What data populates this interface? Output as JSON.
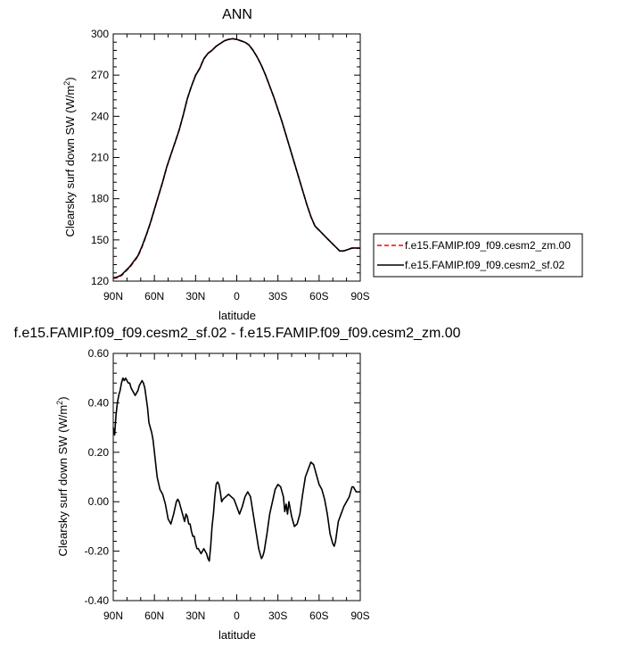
{
  "chart_data": [
    {
      "type": "line",
      "title": "ANN",
      "xlabel": "latitude",
      "ylabel": "Clearsky surf down SW (W/m",
      "ylabel_sup": "2",
      "ylabel_close": ")",
      "xlim": [
        90,
        -90
      ],
      "ylim": [
        120,
        300
      ],
      "x_ticks": [
        90,
        60,
        30,
        0,
        -30,
        -60,
        -90
      ],
      "x_tick_labels": [
        "90N",
        "60N",
        "30N",
        "0",
        "30S",
        "60S",
        "90S"
      ],
      "y_ticks": [
        120,
        150,
        180,
        210,
        240,
        270,
        300
      ],
      "y_tick_labels": [
        "120",
        "150",
        "180",
        "210",
        "240",
        "270",
        "300"
      ],
      "legend_position": "right",
      "series": [
        {
          "name": "f.e15.FAMIP.f09_f09.cesm2_zm.00",
          "color": "#ff0000",
          "dash": "dashed",
          "x": [
            90,
            87,
            84,
            81,
            78,
            75,
            72,
            69,
            66,
            63,
            60,
            57,
            54,
            51,
            48,
            45,
            42,
            39,
            36,
            33,
            30,
            27,
            24,
            21,
            18,
            15,
            12,
            9,
            6,
            3,
            0,
            -3,
            -6,
            -9,
            -12,
            -15,
            -18,
            -21,
            -24,
            -27,
            -30,
            -33,
            -36,
            -39,
            -42,
            -45,
            -48,
            -51,
            -54,
            -57,
            -60,
            -63,
            -66,
            -69,
            -72,
            -75,
            -78,
            -81,
            -84,
            -87,
            -90
          ],
          "y": [
            122,
            122.5,
            124,
            127,
            130,
            134,
            138,
            145,
            153,
            162,
            172,
            182,
            192,
            203,
            212,
            221,
            230,
            241,
            253,
            262,
            270,
            275,
            282,
            286,
            288,
            291,
            293,
            295,
            296,
            296.5,
            296,
            295,
            294,
            292,
            288,
            283,
            277,
            270,
            262,
            254,
            245,
            236,
            226,
            216,
            206,
            196,
            186,
            176,
            167,
            160,
            157,
            154,
            151,
            148,
            145,
            142,
            142,
            143,
            144,
            144,
            144
          ]
        },
        {
          "name": "f.e15.FAMIP.f09_f09.cesm2_sf.02",
          "color": "#000000",
          "dash": "solid",
          "x": [
            90,
            87,
            84,
            81,
            78,
            75,
            72,
            69,
            66,
            63,
            60,
            57,
            54,
            51,
            48,
            45,
            42,
            39,
            36,
            33,
            30,
            27,
            24,
            21,
            18,
            15,
            12,
            9,
            6,
            3,
            0,
            -3,
            -6,
            -9,
            -12,
            -15,
            -18,
            -21,
            -24,
            -27,
            -30,
            -33,
            -36,
            -39,
            -42,
            -45,
            -48,
            -51,
            -54,
            -57,
            -60,
            -63,
            -66,
            -69,
            -72,
            -75,
            -78,
            -81,
            -84,
            -87,
            -90
          ],
          "y": [
            122.3,
            123,
            124.5,
            127.5,
            130.5,
            134.5,
            138.5,
            145.5,
            153.5,
            162.3,
            172.3,
            182.3,
            192.2,
            203.2,
            212.1,
            220.9,
            229.9,
            240.9,
            252.9,
            261.9,
            269.8,
            274.8,
            281.8,
            285.8,
            288.1,
            291,
            293,
            295,
            296,
            296.5,
            296,
            295,
            293.9,
            291.8,
            287.8,
            282.9,
            277,
            270,
            262,
            254,
            245,
            236,
            226,
            216,
            206,
            196,
            186,
            176,
            167.1,
            160.1,
            157.1,
            154,
            150.9,
            147.9,
            145,
            142,
            142,
            143,
            144.1,
            144.1,
            144
          ]
        }
      ]
    },
    {
      "type": "line",
      "title": "f.e15.FAMIP.f09_f09.cesm2_sf.02 - f.e15.FAMIP.f09_f09.cesm2_zm.00",
      "xlabel": "latitude",
      "ylabel": "Clearsky surf down SW (W/m",
      "ylabel_sup": "2",
      "ylabel_close": ")",
      "xlim": [
        90,
        -90
      ],
      "ylim": [
        -0.4,
        0.6
      ],
      "x_ticks": [
        90,
        60,
        30,
        0,
        -30,
        -60,
        -90
      ],
      "x_tick_labels": [
        "90N",
        "60N",
        "30N",
        "0",
        "30S",
        "60S",
        "90S"
      ],
      "y_ticks": [
        -0.4,
        -0.2,
        0,
        0.2,
        0.4,
        0.6
      ],
      "y_tick_labels": [
        "-0.40",
        "-0.20",
        "0.00",
        "0.20",
        "0.40",
        "0.60"
      ],
      "series": [
        {
          "color": "#000000",
          "dash": "solid",
          "x": [
            90,
            89,
            88,
            87,
            86,
            85,
            84,
            83,
            82,
            81,
            80,
            79,
            78,
            77,
            76,
            75,
            74,
            73,
            72,
            71,
            70,
            69,
            68,
            67,
            66,
            65,
            64,
            63,
            62,
            61,
            60,
            58,
            56,
            54,
            52,
            50,
            48,
            46,
            44,
            43,
            42,
            40,
            38,
            37,
            36,
            35,
            34,
            33,
            32,
            31,
            30,
            29,
            28,
            26,
            24,
            22,
            21,
            20,
            19,
            18,
            17,
            16,
            15,
            14,
            13,
            12,
            11,
            10,
            8,
            6,
            4,
            2,
            0,
            -2,
            -4,
            -6,
            -8,
            -10,
            -12,
            -14,
            -16,
            -18,
            -19,
            -20,
            -22,
            -24,
            -26,
            -28,
            -30,
            -32,
            -34,
            -35,
            -36,
            -37,
            -38,
            -39,
            -40,
            -42,
            -44,
            -46,
            -48,
            -50,
            -52,
            -54,
            -56,
            -57,
            -58,
            -60,
            -62,
            -64,
            -66,
            -68,
            -70,
            -71,
            -72,
            -73,
            -74,
            -76,
            -78,
            -80,
            -82,
            -84,
            -85,
            -86,
            -87,
            -88,
            -90
          ],
          "y": [
            0.3,
            0.27,
            0.35,
            0.4,
            0.43,
            0.45,
            0.48,
            0.5,
            0.49,
            0.5,
            0.49,
            0.48,
            0.48,
            0.46,
            0.45,
            0.44,
            0.43,
            0.44,
            0.45,
            0.47,
            0.48,
            0.49,
            0.48,
            0.46,
            0.42,
            0.38,
            0.32,
            0.3,
            0.28,
            0.25,
            0.2,
            0.1,
            0.05,
            0.03,
            -0.01,
            -0.07,
            -0.09,
            -0.05,
            0.0,
            0.01,
            0.0,
            -0.04,
            -0.08,
            -0.05,
            -0.06,
            -0.09,
            -0.09,
            -0.12,
            -0.14,
            -0.14,
            -0.17,
            -0.19,
            -0.19,
            -0.21,
            -0.19,
            -0.21,
            -0.23,
            -0.24,
            -0.18,
            -0.1,
            -0.05,
            0.02,
            0.07,
            0.08,
            0.07,
            0.04,
            0.0,
            0.01,
            0.02,
            0.03,
            0.02,
            0.01,
            -0.02,
            -0.05,
            -0.02,
            0.02,
            0.04,
            0.02,
            -0.05,
            -0.12,
            -0.19,
            -0.23,
            -0.22,
            -0.2,
            -0.13,
            -0.05,
            0.0,
            0.05,
            0.07,
            0.06,
            0.02,
            -0.04,
            -0.01,
            -0.05,
            0.0,
            -0.03,
            -0.06,
            -0.1,
            -0.09,
            -0.05,
            0.03,
            0.1,
            0.13,
            0.16,
            0.15,
            0.13,
            0.11,
            0.07,
            0.05,
            0.01,
            -0.05,
            -0.13,
            -0.17,
            -0.18,
            -0.16,
            -0.12,
            -0.08,
            -0.05,
            -0.02,
            0.0,
            0.02,
            0.06,
            0.06,
            0.05,
            0.04,
            0.04,
            0.04
          ]
        }
      ]
    }
  ],
  "colors": {
    "line_control": "#ff0000",
    "line_test": "#000000",
    "frame": "#000000",
    "background": "#ffffff"
  }
}
